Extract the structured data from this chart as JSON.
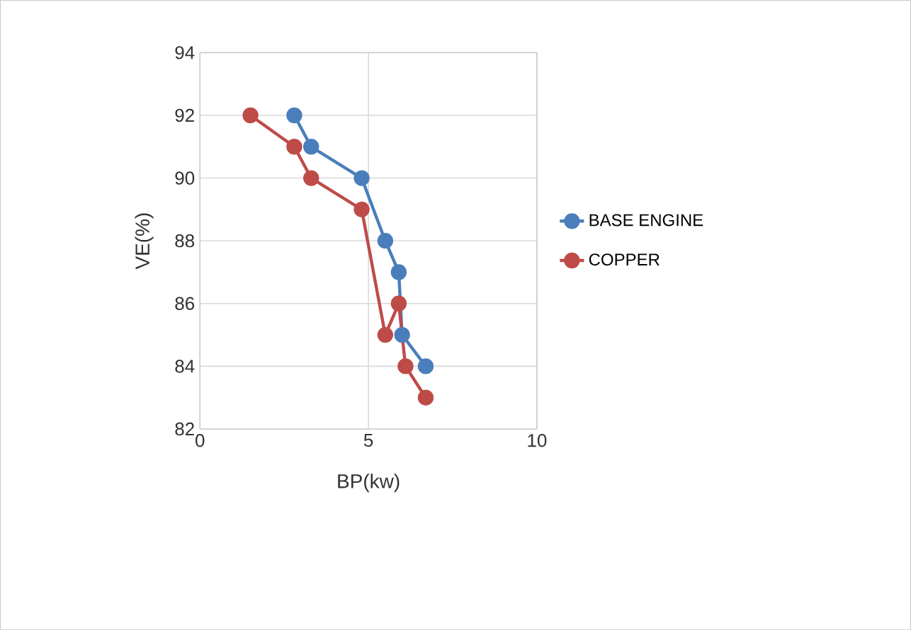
{
  "chart_data": {
    "type": "line",
    "xlabel": "BP(kw)",
    "ylabel": "VE(%)",
    "xlim": [
      0,
      10
    ],
    "xticks": [
      0,
      5,
      10
    ],
    "ylim": [
      82,
      94
    ],
    "yticks": [
      82,
      84,
      86,
      88,
      90,
      92,
      94
    ],
    "grid": true,
    "legend": "right",
    "marker": "circle",
    "line_style": "solid",
    "series": [
      {
        "name": "BASE ENGINE",
        "color": "#4a7ebb",
        "x": [
          2.8,
          3.3,
          4.8,
          5.5,
          5.9,
          6.0,
          6.7
        ],
        "values": [
          92,
          91,
          90,
          88,
          87,
          85,
          84
        ]
      },
      {
        "name": "COPPER",
        "color": "#be4b48",
        "x": [
          1.5,
          2.8,
          3.3,
          4.8,
          5.5,
          5.9,
          6.1,
          6.7
        ],
        "values": [
          92,
          91,
          90,
          89,
          85,
          86,
          84,
          83
        ]
      }
    ]
  }
}
